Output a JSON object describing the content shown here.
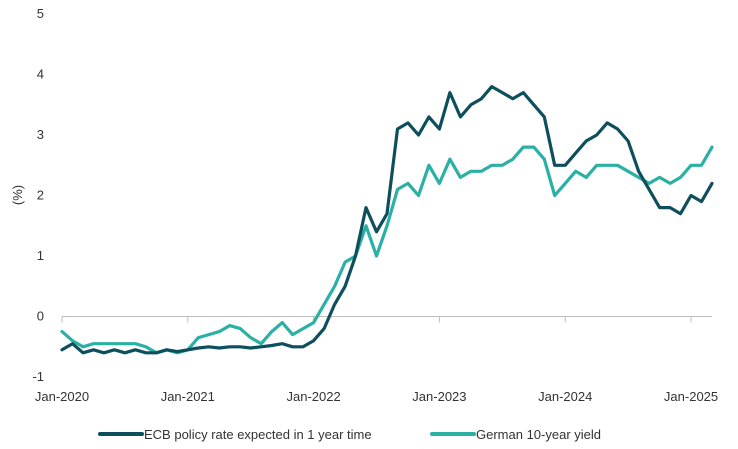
{
  "chart_data": {
    "type": "line",
    "title": "",
    "xlabel": "",
    "ylabel": "(%)",
    "ylim": [
      -1,
      5
    ],
    "yticks": [
      "-1",
      "0",
      "1",
      "2",
      "3",
      "4",
      "5"
    ],
    "xlim": [
      "2020-01",
      "2025-03"
    ],
    "xticks": [
      {
        "label": "Jan-2020",
        "date": "2020-01"
      },
      {
        "label": "Jan-2021",
        "date": "2021-01"
      },
      {
        "label": "Jan-2022",
        "date": "2022-01"
      },
      {
        "label": "Jan-2023",
        "date": "2023-01"
      },
      {
        "label": "Jan-2024",
        "date": "2024-01"
      },
      {
        "label": "Jan-2025",
        "date": "2025-01"
      }
    ],
    "grid": false,
    "legend_position": "bottom",
    "series": [
      {
        "name": "ECB policy rate expected in 1 year time",
        "color": "#0d4f5c",
        "points": [
          [
            "2020-01",
            -0.55
          ],
          [
            "2020-02",
            -0.45
          ],
          [
            "2020-03",
            -0.6
          ],
          [
            "2020-04",
            -0.55
          ],
          [
            "2020-05",
            -0.6
          ],
          [
            "2020-06",
            -0.55
          ],
          [
            "2020-07",
            -0.6
          ],
          [
            "2020-08",
            -0.55
          ],
          [
            "2020-09",
            -0.6
          ],
          [
            "2020-10",
            -0.6
          ],
          [
            "2020-11",
            -0.55
          ],
          [
            "2020-12",
            -0.58
          ],
          [
            "2021-01",
            -0.55
          ],
          [
            "2021-02",
            -0.52
          ],
          [
            "2021-03",
            -0.5
          ],
          [
            "2021-04",
            -0.52
          ],
          [
            "2021-05",
            -0.5
          ],
          [
            "2021-06",
            -0.5
          ],
          [
            "2021-07",
            -0.52
          ],
          [
            "2021-08",
            -0.5
          ],
          [
            "2021-09",
            -0.48
          ],
          [
            "2021-10",
            -0.45
          ],
          [
            "2021-11",
            -0.5
          ],
          [
            "2021-12",
            -0.5
          ],
          [
            "2022-01",
            -0.4
          ],
          [
            "2022-02",
            -0.2
          ],
          [
            "2022-03",
            0.2
          ],
          [
            "2022-04",
            0.5
          ],
          [
            "2022-05",
            1.0
          ],
          [
            "2022-06",
            1.8
          ],
          [
            "2022-07",
            1.4
          ],
          [
            "2022-08",
            1.7
          ],
          [
            "2022-09",
            3.1
          ],
          [
            "2022-10",
            3.2
          ],
          [
            "2022-11",
            3.0
          ],
          [
            "2022-12",
            3.3
          ],
          [
            "2023-01",
            3.1
          ],
          [
            "2023-02",
            3.7
          ],
          [
            "2023-03",
            3.3
          ],
          [
            "2023-04",
            3.5
          ],
          [
            "2023-05",
            3.6
          ],
          [
            "2023-06",
            3.8
          ],
          [
            "2023-07",
            3.7
          ],
          [
            "2023-08",
            3.6
          ],
          [
            "2023-09",
            3.7
          ],
          [
            "2023-10",
            3.5
          ],
          [
            "2023-11",
            3.3
          ],
          [
            "2023-12",
            2.5
          ],
          [
            "2024-01",
            2.5
          ],
          [
            "2024-02",
            2.7
          ],
          [
            "2024-03",
            2.9
          ],
          [
            "2024-04",
            3.0
          ],
          [
            "2024-05",
            3.2
          ],
          [
            "2024-06",
            3.1
          ],
          [
            "2024-07",
            2.9
          ],
          [
            "2024-08",
            2.4
          ],
          [
            "2024-09",
            2.1
          ],
          [
            "2024-10",
            1.8
          ],
          [
            "2024-11",
            1.8
          ],
          [
            "2024-12",
            1.7
          ],
          [
            "2025-01",
            2.0
          ],
          [
            "2025-02",
            1.9
          ],
          [
            "2025-03",
            2.2
          ]
        ]
      },
      {
        "name": "German 10-year yield",
        "color": "#2ab0a4",
        "points": [
          [
            "2020-01",
            -0.25
          ],
          [
            "2020-02",
            -0.4
          ],
          [
            "2020-03",
            -0.5
          ],
          [
            "2020-04",
            -0.45
          ],
          [
            "2020-05",
            -0.45
          ],
          [
            "2020-06",
            -0.45
          ],
          [
            "2020-07",
            -0.45
          ],
          [
            "2020-08",
            -0.45
          ],
          [
            "2020-09",
            -0.5
          ],
          [
            "2020-10",
            -0.6
          ],
          [
            "2020-11",
            -0.55
          ],
          [
            "2020-12",
            -0.6
          ],
          [
            "2021-01",
            -0.55
          ],
          [
            "2021-02",
            -0.35
          ],
          [
            "2021-03",
            -0.3
          ],
          [
            "2021-04",
            -0.25
          ],
          [
            "2021-05",
            -0.15
          ],
          [
            "2021-06",
            -0.2
          ],
          [
            "2021-07",
            -0.35
          ],
          [
            "2021-08",
            -0.45
          ],
          [
            "2021-09",
            -0.25
          ],
          [
            "2021-10",
            -0.1
          ],
          [
            "2021-11",
            -0.3
          ],
          [
            "2021-12",
            -0.2
          ],
          [
            "2022-01",
            -0.1
          ],
          [
            "2022-02",
            0.2
          ],
          [
            "2022-03",
            0.5
          ],
          [
            "2022-04",
            0.9
          ],
          [
            "2022-05",
            1.0
          ],
          [
            "2022-06",
            1.5
          ],
          [
            "2022-07",
            1.0
          ],
          [
            "2022-08",
            1.5
          ],
          [
            "2022-09",
            2.1
          ],
          [
            "2022-10",
            2.2
          ],
          [
            "2022-11",
            2.0
          ],
          [
            "2022-12",
            2.5
          ],
          [
            "2023-01",
            2.2
          ],
          [
            "2023-02",
            2.6
          ],
          [
            "2023-03",
            2.3
          ],
          [
            "2023-04",
            2.4
          ],
          [
            "2023-05",
            2.4
          ],
          [
            "2023-06",
            2.5
          ],
          [
            "2023-07",
            2.5
          ],
          [
            "2023-08",
            2.6
          ],
          [
            "2023-09",
            2.8
          ],
          [
            "2023-10",
            2.8
          ],
          [
            "2023-11",
            2.6
          ],
          [
            "2023-12",
            2.0
          ],
          [
            "2024-01",
            2.2
          ],
          [
            "2024-02",
            2.4
          ],
          [
            "2024-03",
            2.3
          ],
          [
            "2024-04",
            2.5
          ],
          [
            "2024-05",
            2.5
          ],
          [
            "2024-06",
            2.5
          ],
          [
            "2024-07",
            2.4
          ],
          [
            "2024-08",
            2.3
          ],
          [
            "2024-09",
            2.2
          ],
          [
            "2024-10",
            2.3
          ],
          [
            "2024-11",
            2.2
          ],
          [
            "2024-12",
            2.3
          ],
          [
            "2025-01",
            2.5
          ],
          [
            "2025-02",
            2.5
          ],
          [
            "2025-03",
            2.8
          ]
        ]
      }
    ]
  }
}
